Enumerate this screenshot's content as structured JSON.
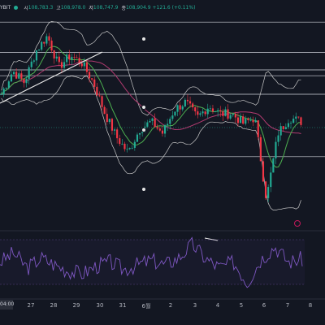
{
  "header": {
    "symbol": "YBIT",
    "open_label": "시",
    "open_value": "108,783.3",
    "high_label": "고",
    "high_value": "108,978.0",
    "low_label": "저",
    "low_value": "108,747.9",
    "close_label": "종",
    "close_value": "108,904.9",
    "change": "+121.6 (+0.11%)"
  },
  "x_axis": {
    "current_label": "04:00",
    "ticks": [
      "27",
      "28",
      "29",
      "30",
      "31",
      "6월",
      "2",
      "3",
      "4",
      "5",
      "6",
      "7",
      "8"
    ]
  },
  "colors": {
    "background": "#131722",
    "up": "#22ab94",
    "down": "#f23645",
    "ma_fast": "#4caf50",
    "ma_slow": "#b03a6f",
    "bands": "#c8c8c8",
    "rsi": "#7e57c2",
    "hline": "#d1d4dc"
  },
  "chart_data": {
    "type": "candlestick",
    "x_ticks": [
      "27",
      "28",
      "29",
      "30",
      "31",
      "6월",
      "2",
      "3",
      "4",
      "5",
      "6",
      "7",
      "8"
    ],
    "price_profile": [
      0.6,
      0.72,
      0.66,
      0.82,
      0.9,
      0.74,
      0.8,
      0.76,
      0.66,
      0.5,
      0.38,
      0.3,
      0.42,
      0.46,
      0.4,
      0.52,
      0.56,
      0.48,
      0.54,
      0.5,
      0.5,
      0.45,
      0.48,
      0.06,
      0.4,
      0.48,
      0.46
    ],
    "rsi_profile": [
      0.55,
      0.7,
      0.45,
      0.62,
      0.5,
      0.4,
      0.35,
      0.48,
      0.55,
      0.42,
      0.5,
      0.58,
      0.5,
      0.62,
      0.85,
      0.6,
      0.45,
      0.55,
      0.2,
      0.6,
      0.82,
      0.55,
      0.6
    ],
    "horizontal_levels": [
      0.97,
      0.815,
      0.725,
      0.695,
      0.6,
      0.28
    ],
    "annotations": [
      "●",
      "●",
      "●",
      "●"
    ]
  }
}
